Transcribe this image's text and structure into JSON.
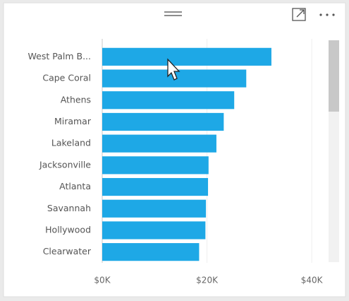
{
  "chart_data": {
    "type": "bar",
    "orientation": "horizontal",
    "categories": [
      "West Palm B...",
      "Cape Coral",
      "Athens",
      "Miramar",
      "Lakeland",
      "Jacksonville",
      "Atlanta",
      "Savannah",
      "Hollywood",
      "Clearwater"
    ],
    "values": [
      32300,
      27500,
      25200,
      23200,
      21800,
      20300,
      20200,
      19800,
      19700,
      18500
    ],
    "color": "#1ea8e6",
    "xlim": [
      0,
      42000
    ],
    "xticks": [
      {
        "value": 0,
        "label": "$0K"
      },
      {
        "value": 20000,
        "label": "$20K"
      },
      {
        "value": 40000,
        "label": "$40K"
      }
    ],
    "grid": true
  }
}
